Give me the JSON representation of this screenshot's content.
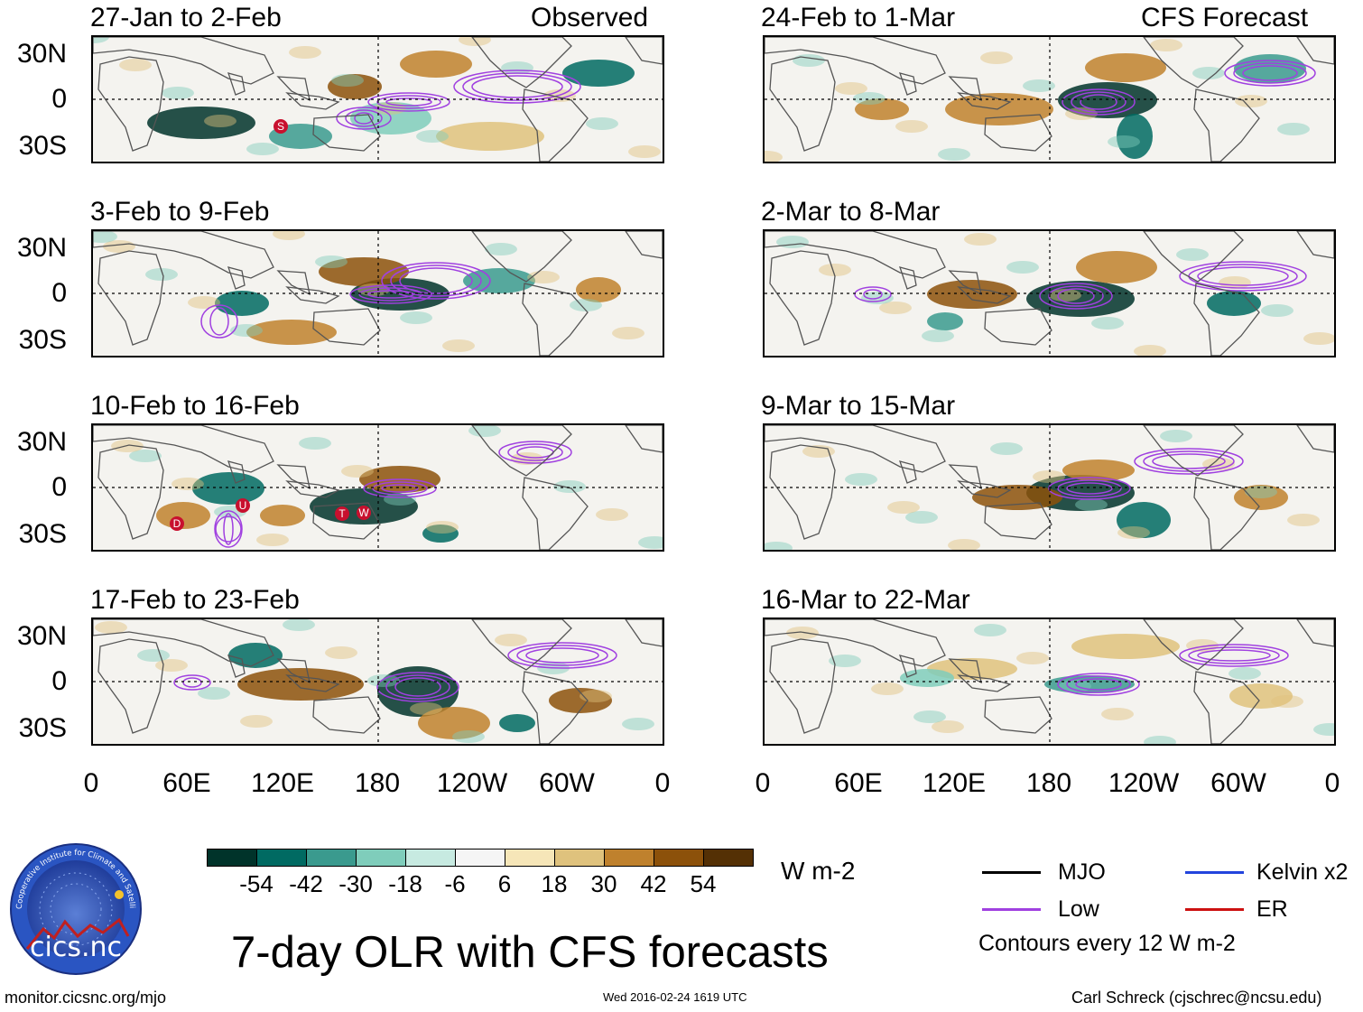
{
  "header": {
    "left_tag": "Observed",
    "right_tag": "CFS Forecast"
  },
  "panels": {
    "observed": [
      {
        "title": "27-Jan to 2-Feb",
        "storms": [
          "S"
        ]
      },
      {
        "title": "3-Feb to 9-Feb",
        "storms": []
      },
      {
        "title": "10-Feb to 16-Feb",
        "storms": [
          "D",
          "U",
          "T",
          "W"
        ]
      },
      {
        "title": "17-Feb to 23-Feb",
        "storms": []
      }
    ],
    "forecast": [
      {
        "title": "24-Feb to 1-Mar"
      },
      {
        "title": "2-Mar to 8-Mar"
      },
      {
        "title": "9-Mar to 15-Mar"
      },
      {
        "title": "16-Mar to 22-Mar"
      }
    ]
  },
  "axes": {
    "lat_labels": [
      "30N",
      "0",
      "30S"
    ],
    "lon_labels": [
      "0",
      "60E",
      "120E",
      "180",
      "120W",
      "60W",
      "0"
    ]
  },
  "colorbar": {
    "unit": "W m-2",
    "ticks": [
      "-54",
      "-42",
      "-30",
      "-18",
      "-6",
      "6",
      "18",
      "30",
      "42",
      "54"
    ],
    "colors": [
      "#00332a",
      "#006a62",
      "#3a9a8e",
      "#7fcdbb",
      "#c7eae1",
      "#f5f5f5",
      "#f6e6b8",
      "#dfc27d",
      "#bf812d",
      "#8c510a",
      "#543005"
    ]
  },
  "legend": {
    "items": [
      {
        "label": "MJO",
        "color": "#000000"
      },
      {
        "label": "Kelvin x2",
        "color": "#2244dd"
      },
      {
        "label": "Low",
        "color": "#a040e0"
      },
      {
        "label": "ER",
        "color": "#cc1111"
      }
    ],
    "contours_note": "Contours every 12 W m-2"
  },
  "logo": {
    "text": "cics.nc",
    "ring_text": "Cooperative Institute for Climate and Satellites"
  },
  "main_title": "7-day OLR with CFS forecasts",
  "footer": {
    "url": "monitor.cicsnc.org/mjo",
    "timestamp": "Wed 2016-02-24 1619 UTC",
    "credit": "Carl Schreck (cjschrec@ncsu.edu)"
  }
}
